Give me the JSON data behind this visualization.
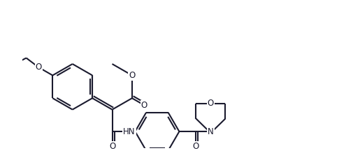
{
  "line_color": "#1a1a2e",
  "bg_color": "#ffffff",
  "lw": 1.5,
  "figsize": [
    5.06,
    2.2
  ],
  "dpi": 100,
  "xlim": [
    0,
    10.5
  ],
  "ylim": [
    -0.5,
    4.5
  ]
}
